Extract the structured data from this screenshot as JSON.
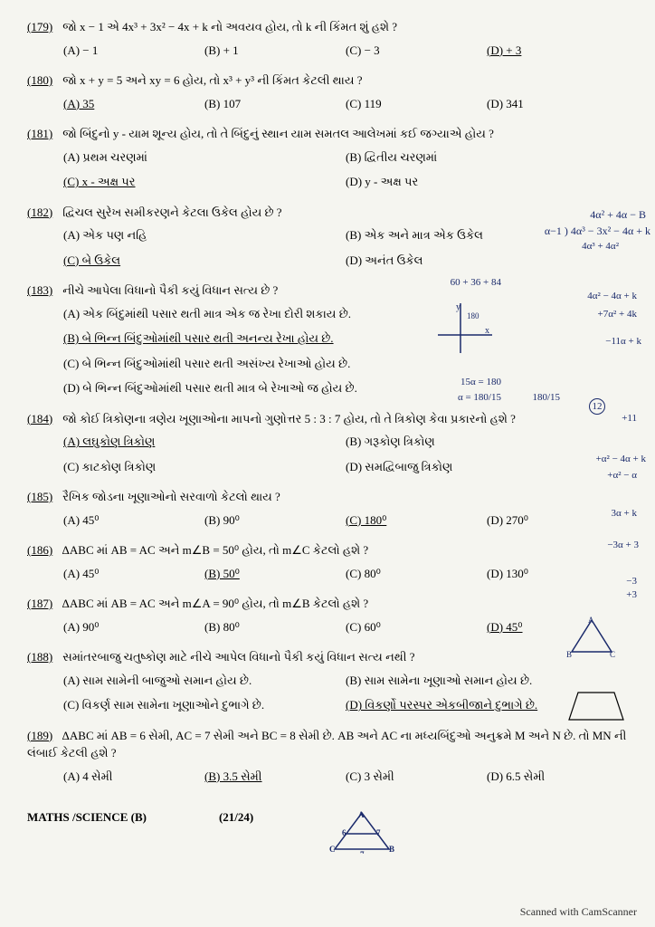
{
  "questions": [
    {
      "num": "(179)",
      "text": "જો x − 1 એ 4x³ + 3x² − 4x + k નો અવયવ હોય, તો k ની કિંમત શું હશે ?",
      "options": [
        {
          "label": "(A) − 1",
          "cls": "opt"
        },
        {
          "label": "(B) + 1",
          "cls": "opt"
        },
        {
          "label": "(C) − 3",
          "cls": "opt"
        },
        {
          "label": "(D) + 3",
          "cls": "opt underline"
        }
      ]
    },
    {
      "num": "(180)",
      "text": "જો x + y = 5 અને xy = 6 હોય, તો x³ + y³ ની કિંમત કેટલી થાય ?",
      "options": [
        {
          "label": "(A) 35",
          "cls": "opt underline"
        },
        {
          "label": "(B) 107",
          "cls": "opt"
        },
        {
          "label": "(C) 119",
          "cls": "opt"
        },
        {
          "label": "(D) 341",
          "cls": "opt"
        }
      ]
    },
    {
      "num": "(181)",
      "text": "જો બિંદુનો y - યામ શૂન્ય હોય, તો તે બિંદુનું સ્થાન યામ સમતલ આલેખમાં કઈ જગ્યાએ હોય ?",
      "options": [
        {
          "label": "(A) પ્રથમ ચરણમાં",
          "cls": "opt-wide"
        },
        {
          "label": "(B) દ્વિતીય ચરણમાં",
          "cls": "opt-wide"
        },
        {
          "label": "(C) x - અક્ષ પર",
          "cls": "opt-wide underline"
        },
        {
          "label": "(D) y - અક્ષ પર",
          "cls": "opt-wide"
        }
      ]
    },
    {
      "num": "(182)",
      "text": "દ્વિચલ સુરેખ સમીકરણને કેટલા ઉકેલ હોય છે ?",
      "options": [
        {
          "label": "(A) એક પણ નહિ",
          "cls": "opt-wide"
        },
        {
          "label": "(B) એક અને માત્ર એક ઉકેલ",
          "cls": "opt-wide"
        },
        {
          "label": "(C) બે ઉકેલ",
          "cls": "opt-wide underline"
        },
        {
          "label": "(D) અનંત ઉકેલ",
          "cls": "opt-wide"
        }
      ]
    },
    {
      "num": "(183)",
      "text": "નીચે આપેલા વિધાનો પૈકી કયું વિધાન સત્ય છે ?",
      "options": [
        {
          "label": "(A) એક બિંદુમાંથી પસાર થતી માત્ર એક જ રેખા દોરી શકાય છે.",
          "cls": "opt-full"
        },
        {
          "label": "(B) બે ભિન્ન બિંદુઓમાંથી પસાર થતી અનન્ય રેખા હોય છે.",
          "cls": "opt-full underline"
        },
        {
          "label": "(C) બે ભિન્ન બિંદુઓમાંથી પસાર થતી અસંખ્ય રેખાઓ હોય છે.",
          "cls": "opt-full"
        },
        {
          "label": "(D) બે ભિન્ન બિંદુઓમાંથી પસાર થતી માત્ર બે રેખાઓ જ હોય છે.",
          "cls": "opt-full"
        }
      ]
    },
    {
      "num": "(184)",
      "text": "જો કોઈ ત્રિકોણના ત્રણેય ખૂણાઓના માપનો ગુણોત્તર 5 : 3 : 7 હોય, તો તે ત્રિકોણ કેવા પ્રકારનો હશે ?",
      "options": [
        {
          "label": "(A) લઘુકોણ ત્રિકોણ",
          "cls": "opt-wide underline"
        },
        {
          "label": "(B) ગરૂકોણ ત્રિકોણ",
          "cls": "opt-wide"
        },
        {
          "label": "(C) કાટકોણ ત્રિકોણ",
          "cls": "opt-wide"
        },
        {
          "label": "(D) સમદ્વિબાજુ ત્રિકોણ",
          "cls": "opt-wide"
        }
      ]
    },
    {
      "num": "(185)",
      "text": "રૈખિક જોડના ખૂણાઓનો સરવાળો કેટલો થાય ?",
      "options": [
        {
          "label": "(A) 45⁰",
          "cls": "opt"
        },
        {
          "label": "(B) 90⁰",
          "cls": "opt"
        },
        {
          "label": "(C) 180⁰",
          "cls": "opt underline"
        },
        {
          "label": "(D) 270⁰",
          "cls": "opt"
        }
      ]
    },
    {
      "num": "(186)",
      "text": "ΔABC માં AB = AC અને m∠B = 50⁰ હોય, તો m∠C કેટલો હશે ?",
      "options": [
        {
          "label": "(A) 45⁰",
          "cls": "opt"
        },
        {
          "label": "(B) 50⁰",
          "cls": "opt underline"
        },
        {
          "label": "(C) 80⁰",
          "cls": "opt"
        },
        {
          "label": "(D) 130⁰",
          "cls": "opt"
        }
      ]
    },
    {
      "num": "(187)",
      "text": "ΔABC માં AB = AC અને m∠A = 90⁰ હોય, તો m∠B કેટલો હશે ?",
      "options": [
        {
          "label": "(A) 90⁰",
          "cls": "opt"
        },
        {
          "label": "(B) 80⁰",
          "cls": "opt"
        },
        {
          "label": "(C) 60⁰",
          "cls": "opt"
        },
        {
          "label": "(D) 45⁰",
          "cls": "opt underline"
        }
      ]
    },
    {
      "num": "(188)",
      "text": "સમાંતરબાજુ ચતુષ્કોણ માટે નીચે આપેલ વિધાનો પૈકી કયું વિધાન સત્ય નથી ?",
      "options": [
        {
          "label": "(A) સામ સામેની બાજુઓ સમાન હોય છે.",
          "cls": "opt-wide"
        },
        {
          "label": "(B) સામ સામેના ખૂણાઓ સમાન હોય છે.",
          "cls": "opt-wide"
        },
        {
          "label": "(C) વિકર્ણ સામ સામેના ખૂણાઓને દુભાગે છે.",
          "cls": "opt-wide"
        },
        {
          "label": "(D) વિકર્ણો પરસ્પર એકબીજાને દુભાગે છે.",
          "cls": "opt-wide underline"
        }
      ]
    },
    {
      "num": "(189)",
      "text": "ΔABC માં AB = 6 સેમી, AC = 7 સેમી અને BC = 8 સેમી છે. AB અને AC ના મધ્યબિંદુઓ અનુક્રમે M અને N છે. તો MN ની લંબાઈ કેટલી હશે ?",
      "options": [
        {
          "label": "(A) 4 સેમી",
          "cls": "opt"
        },
        {
          "label": "(B) 3.5 સેમી",
          "cls": "opt underline"
        },
        {
          "label": "(C) 3 સેમી",
          "cls": "opt"
        },
        {
          "label": "(D) 6.5 સેમી",
          "cls": "opt"
        }
      ]
    }
  ],
  "footer_subject": "MATHS /SCIENCE (B)",
  "footer_page": "(21/24)",
  "scan_note": "Scanned with CamScanner",
  "handwriting": {
    "line1": "4α² + 4α − B",
    "line2": "α−1 ) 4α³ − 3x² − 4α + k",
    "line3": "4α³ + 4α²",
    "line4": "60 + 36 + 84",
    "line5": "4α² − 4α + k",
    "line6": "+7α² + 4k",
    "line7": "−11α + k",
    "line8": "15α = 180",
    "line9": "α = 180/15",
    "line10": "180/15",
    "line11": "+11",
    "line12": "+α² − 4α + k",
    "line13": "+α² − α",
    "line14": "3α + k",
    "line15": "−3α + 3",
    "line16": "−3",
    "line17": "+3",
    "circ": "12",
    "tri_left": "A B C"
  }
}
